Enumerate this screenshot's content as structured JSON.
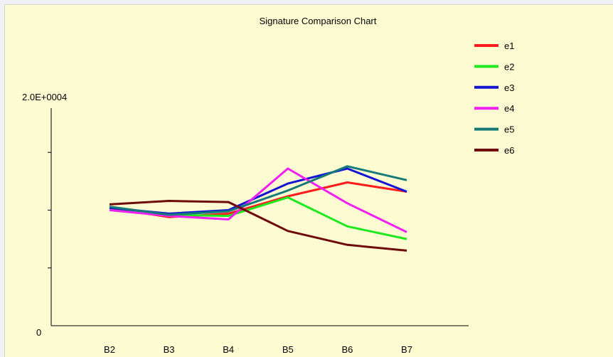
{
  "chart_data": {
    "type": "line",
    "title": "Signature Comparison Chart",
    "xlabel": "",
    "ylabel": "",
    "categories": [
      "B2",
      "B3",
      "B4",
      "B5",
      "B6",
      "B7"
    ],
    "y_tick_labels": {
      "top": "2.0E+0004",
      "bottom": "0"
    },
    "ylim": [
      0,
      20000
    ],
    "grid": false,
    "legend_position": "top-right",
    "series": [
      {
        "name": "e1",
        "color": "#ff1c1c",
        "values": [
          10200,
          9400,
          9700,
          11200,
          12400,
          11600
        ]
      },
      {
        "name": "e2",
        "color": "#1ee81e",
        "values": [
          10200,
          9600,
          9500,
          11100,
          8600,
          7500
        ]
      },
      {
        "name": "e3",
        "color": "#1414d2",
        "values": [
          10200,
          9700,
          10000,
          12300,
          13600,
          11600
        ]
      },
      {
        "name": "e4",
        "color": "#f020f0",
        "values": [
          10000,
          9500,
          9200,
          13600,
          10600,
          8100
        ]
      },
      {
        "name": "e5",
        "color": "#177a7a",
        "values": [
          10300,
          9600,
          9900,
          11700,
          13800,
          12600
        ]
      },
      {
        "name": "e6",
        "color": "#6e0a0a",
        "values": [
          10500,
          10800,
          10700,
          8200,
          7000,
          6500
        ]
      }
    ]
  }
}
